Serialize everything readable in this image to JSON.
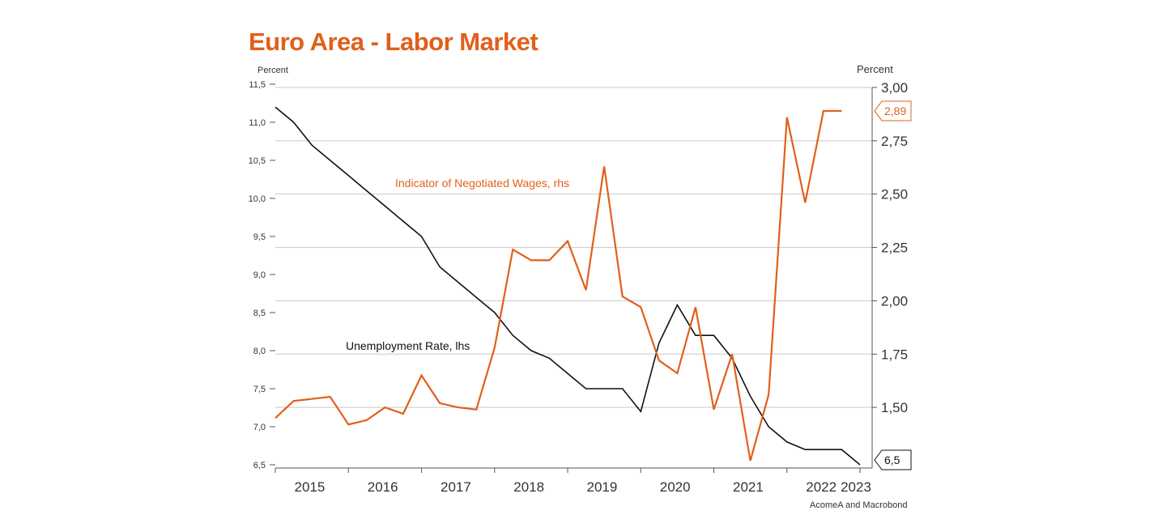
{
  "title": "Euro Area - Labor Market",
  "source": "AcomeA and Macrobond",
  "colors": {
    "title": "#e0601b",
    "wages": "#e0601b",
    "unemployment": "#111111",
    "grid": "#c8c8c8",
    "axis": "#555555"
  },
  "chart_data": {
    "type": "line",
    "title": "Euro Area - Labor Market",
    "x_ticks": [
      "2015",
      "2016",
      "2017",
      "2018",
      "2019",
      "2020",
      "2021",
      "2022",
      "2023"
    ],
    "left_axis": {
      "label": "Percent",
      "range": [
        6.5,
        11.5
      ],
      "ticks": [
        "6,5",
        "7,0",
        "7,5",
        "8,0",
        "8,5",
        "9,0",
        "9,5",
        "10,0",
        "10,5",
        "11,0",
        "11,5"
      ]
    },
    "right_axis": {
      "label": "Percent",
      "range": [
        1.25,
        3.0
      ],
      "ticks": [
        "1,50",
        "1,75",
        "2,00",
        "2,25",
        "2,50",
        "2,75",
        "3,00"
      ]
    },
    "grid": "horizontal lines at right-axis ticks",
    "series": [
      {
        "name": "Unemployment Rate, lhs",
        "axis": "left",
        "color": "#111111",
        "last_value_label": "6,5",
        "points": [
          [
            "2015-01",
            11.2
          ],
          [
            "2015-04",
            11.0
          ],
          [
            "2015-07",
            10.7
          ],
          [
            "2015-10",
            10.5
          ],
          [
            "2016-01",
            10.3
          ],
          [
            "2016-04",
            10.1
          ],
          [
            "2016-07",
            9.9
          ],
          [
            "2016-10",
            9.7
          ],
          [
            "2017-01",
            9.5
          ],
          [
            "2017-04",
            9.1
          ],
          [
            "2017-07",
            8.9
          ],
          [
            "2017-10",
            8.7
          ],
          [
            "2018-01",
            8.5
          ],
          [
            "2018-04",
            8.2
          ],
          [
            "2018-07",
            8.0
          ],
          [
            "2018-10",
            7.9
          ],
          [
            "2019-01",
            7.7
          ],
          [
            "2019-04",
            7.5
          ],
          [
            "2019-07",
            7.5
          ],
          [
            "2019-10",
            7.5
          ],
          [
            "2020-01",
            7.2
          ],
          [
            "2020-04",
            8.1
          ],
          [
            "2020-07",
            8.6
          ],
          [
            "2020-10",
            8.2
          ],
          [
            "2021-01",
            8.2
          ],
          [
            "2021-04",
            7.9
          ],
          [
            "2021-07",
            7.4
          ],
          [
            "2021-10",
            7.0
          ],
          [
            "2022-01",
            6.8
          ],
          [
            "2022-04",
            6.7
          ],
          [
            "2022-07",
            6.7
          ],
          [
            "2022-10",
            6.7
          ],
          [
            "2023-01",
            6.5
          ]
        ]
      },
      {
        "name": "Indicator of Negotiated Wages, rhs",
        "axis": "right",
        "color": "#e0601b",
        "last_value_label": "2,89",
        "points": [
          [
            "2015-01",
            1.45
          ],
          [
            "2015-04",
            1.53
          ],
          [
            "2015-10",
            1.55
          ],
          [
            "2016-01",
            1.42
          ],
          [
            "2016-04",
            1.44
          ],
          [
            "2016-07",
            1.5
          ],
          [
            "2016-10",
            1.47
          ],
          [
            "2017-01",
            1.65
          ],
          [
            "2017-04",
            1.52
          ],
          [
            "2017-07",
            1.5
          ],
          [
            "2017-10",
            1.49
          ],
          [
            "2018-01",
            1.78
          ],
          [
            "2018-04",
            2.24
          ],
          [
            "2018-07",
            2.19
          ],
          [
            "2018-10",
            2.19
          ],
          [
            "2019-01",
            2.28
          ],
          [
            "2019-04",
            2.05
          ],
          [
            "2019-07",
            2.63
          ],
          [
            "2019-10",
            2.02
          ],
          [
            "2020-01",
            1.97
          ],
          [
            "2020-04",
            1.72
          ],
          [
            "2020-07",
            1.66
          ],
          [
            "2020-10",
            1.97
          ],
          [
            "2021-01",
            1.49
          ],
          [
            "2021-04",
            1.75
          ],
          [
            "2021-07",
            1.25
          ],
          [
            "2021-10",
            1.56
          ],
          [
            "2022-01",
            2.86
          ],
          [
            "2022-04",
            2.46
          ],
          [
            "2022-07",
            2.89
          ],
          [
            "2022-10",
            2.89
          ]
        ]
      }
    ]
  }
}
